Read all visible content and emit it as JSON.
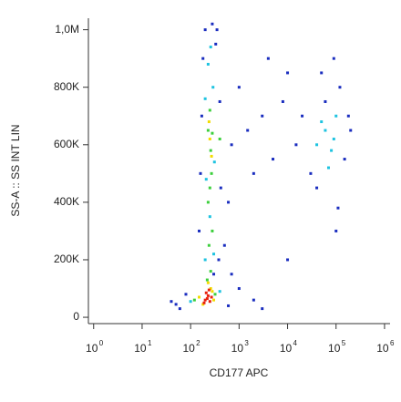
{
  "chart_data": {
    "type": "scatter",
    "x_label": "CD177 APC",
    "y_label": "SS-A :: SS INT LIN",
    "x_scale": "log",
    "xlim": [
      0.78,
      1300000
    ],
    "xticks": [
      {
        "value": 1,
        "label": "10",
        "sup": "0"
      },
      {
        "value": 10,
        "label": "10",
        "sup": "1"
      },
      {
        "value": 100,
        "label": "10",
        "sup": "2"
      },
      {
        "value": 1000,
        "label": "10",
        "sup": "3"
      },
      {
        "value": 10000,
        "label": "10",
        "sup": "4"
      },
      {
        "value": 100000,
        "label": "10",
        "sup": "5"
      },
      {
        "value": 1000000,
        "label": "10",
        "sup": "6"
      }
    ],
    "ylim": [
      -22000,
      1040000
    ],
    "yticks": [
      0,
      {
        "value": 200000,
        "label": "200K"
      },
      {
        "value": 400000,
        "label": "400K"
      },
      {
        "value": 600000,
        "label": "600K"
      },
      {
        "value": 800000,
        "label": "800K"
      },
      {
        "value": 1000000,
        "label": "1,0M"
      }
    ],
    "series": [
      {
        "color": "#1a2dbf",
        "x": [
          180,
          330,
          280,
          350,
          170,
          400,
          150,
          380,
          160,
          420,
          200,
          300,
          700,
          1500,
          3000,
          1000,
          5000,
          8000,
          2000,
          10000,
          15000,
          4000,
          20000,
          600,
          30000,
          120000,
          150000,
          200000,
          40000,
          90000,
          60000,
          180000,
          110000,
          50000,
          60,
          80,
          50,
          600,
          1000,
          2000,
          700,
          10000,
          100000,
          3000,
          500,
          40
        ],
        "values": [
          900000,
          950000,
          1020000,
          1000000,
          700000,
          750000,
          300000,
          200000,
          500000,
          450000,
          1000000,
          150000,
          600000,
          650000,
          700000,
          800000,
          550000,
          750000,
          500000,
          850000,
          600000,
          900000,
          700000,
          400000,
          500000,
          800000,
          550000,
          650000,
          450000,
          900000,
          750000,
          700000,
          380000,
          850000,
          30000,
          80000,
          45000,
          40000,
          100000,
          60000,
          150000,
          200000,
          300000,
          30000,
          250000,
          55000
        ]
      },
      {
        "color": "#1ec3e0",
        "x": [
          200,
          300,
          250,
          210,
          310,
          200,
          290,
          230,
          260,
          40000,
          60000,
          80000,
          100000,
          70000,
          50000,
          90000,
          100,
          400
        ],
        "values": [
          200000,
          220000,
          350000,
          480000,
          540000,
          760000,
          800000,
          880000,
          940000,
          600000,
          650000,
          580000,
          700000,
          520000,
          680000,
          620000,
          55000,
          90000
        ]
      },
      {
        "color": "#3ccf3c",
        "x": [
          220,
          260,
          240,
          280,
          230,
          250,
          270,
          260,
          230,
          250,
          280,
          120,
          320,
          400
        ],
        "values": [
          130000,
          160000,
          250000,
          300000,
          400000,
          450000,
          500000,
          580000,
          650000,
          720000,
          640000,
          60000,
          80000,
          620000
        ]
      },
      {
        "color": "#f2dc00",
        "x": [
          180,
          300,
          260,
          150,
          280,
          230,
          250,
          270,
          240
        ],
        "values": [
          45000,
          60000,
          100000,
          70000,
          90000,
          120000,
          620000,
          560000,
          680000
        ]
      },
      {
        "color": "#e8200c",
        "x": [
          200,
          230,
          250,
          210,
          270,
          190,
          240,
          220
        ],
        "values": [
          60000,
          75000,
          55000,
          85000,
          70000,
          50000,
          95000,
          65000
        ]
      }
    ]
  }
}
